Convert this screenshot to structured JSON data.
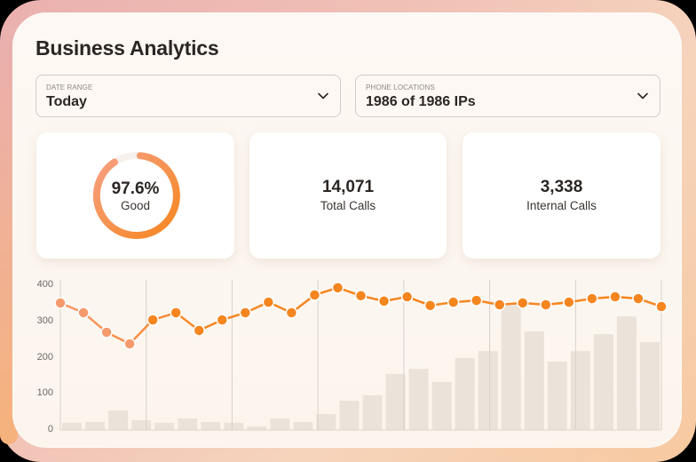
{
  "header": {
    "title": "Business Analytics"
  },
  "filters": {
    "date_range": {
      "label": "DATE RANGE",
      "value": "Today",
      "icon": "chevron-down-icon"
    },
    "phone_locations": {
      "label": "PHONE LOCATIONS",
      "value": "1986 of 1986 IPs",
      "icon": "chevron-down-icon"
    }
  },
  "cards": {
    "quality": {
      "value": "97.6%",
      "caption": "Good",
      "percent": 97.6
    },
    "total_calls": {
      "value": "14,071",
      "caption": "Total Calls"
    },
    "internal_calls": {
      "value": "3,338",
      "caption": "Internal Calls"
    }
  },
  "colors": {
    "accent": "#f5861f",
    "accent_light": "#f69a6d",
    "bar": "#e9e1d6",
    "text": "#2b2623"
  },
  "chart_data": {
    "type": "bar+line",
    "title": "",
    "xlabel": "",
    "ylabel": "",
    "ylim": [
      0,
      400
    ],
    "yticks": [
      0,
      100,
      200,
      300,
      400
    ],
    "grid": "vertical",
    "series": [
      {
        "name": "line",
        "type": "line",
        "values": [
          351,
          324,
          270,
          238,
          304,
          324,
          275,
          304,
          324,
          353,
          324,
          373,
          393,
          371,
          356,
          368,
          344,
          353,
          358,
          346,
          351,
          346,
          353,
          363,
          368,
          363,
          341
        ]
      },
      {
        "name": "bars",
        "type": "bar",
        "values": [
          20,
          22,
          54,
          27,
          20,
          32,
          22,
          20,
          10,
          32,
          22,
          44,
          81,
          96,
          155,
          169,
          133,
          199,
          218,
          344,
          272,
          189,
          218,
          265,
          314,
          243
        ]
      }
    ]
  }
}
